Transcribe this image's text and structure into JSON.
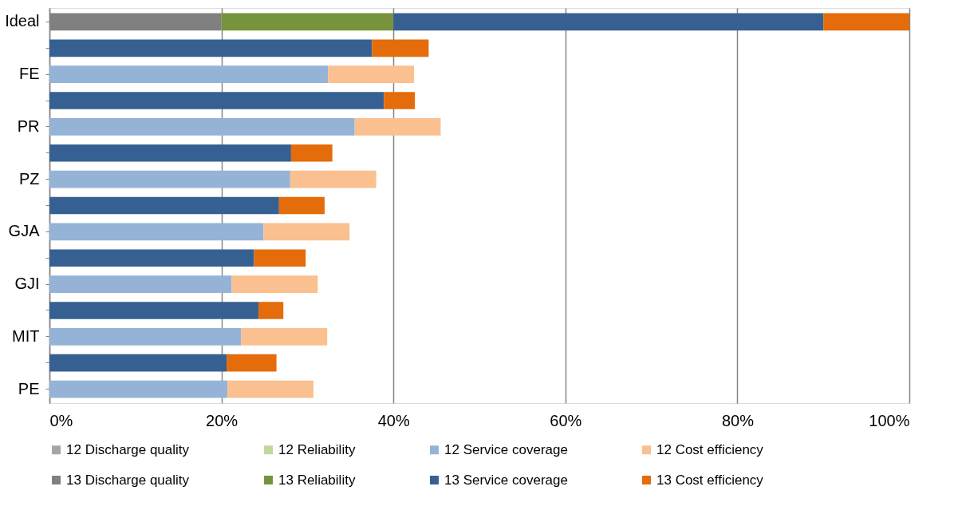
{
  "chart_data": {
    "type": "bar",
    "orientation": "horizontal",
    "stacked": true,
    "categories": [
      "Ideal",
      null,
      "FE",
      null,
      "PR",
      null,
      "PZ",
      null,
      "GJA",
      null,
      "GJI",
      null,
      "MIT",
      null,
      "PE"
    ],
    "series": [
      {
        "name": "12 Discharge quality",
        "color": "#a5a5a5",
        "values": [
          null,
          null,
          null,
          null,
          null,
          null,
          null,
          null,
          null,
          null,
          null,
          null,
          null,
          null,
          null
        ]
      },
      {
        "name": "12 Reliability",
        "color": "#c3d69b",
        "values": [
          null,
          null,
          null,
          null,
          null,
          null,
          null,
          null,
          null,
          null,
          null,
          null,
          null,
          null,
          null
        ]
      },
      {
        "name": "12 Service coverage",
        "color": "#95b3d7",
        "values": [
          null,
          null,
          32.4,
          null,
          35.5,
          null,
          28.0,
          null,
          24.9,
          null,
          21.2,
          null,
          22.3,
          null,
          20.7
        ]
      },
      {
        "name": "12 Cost efficiency",
        "color": "#fac090",
        "values": [
          null,
          null,
          10,
          null,
          10,
          null,
          10,
          null,
          10,
          null,
          10,
          null,
          10,
          null,
          10
        ]
      },
      {
        "name": "13 Discharge quality",
        "color": "#808080",
        "values": [
          20,
          null,
          null,
          null,
          null,
          null,
          null,
          null,
          null,
          null,
          null,
          null,
          null,
          null,
          null
        ]
      },
      {
        "name": "13 Reliability",
        "color": "#77933c",
        "values": [
          20,
          null,
          null,
          null,
          null,
          null,
          null,
          null,
          null,
          null,
          null,
          null,
          null,
          null,
          null
        ]
      },
      {
        "name": "13 Service coverage",
        "color": "#366092",
        "values": [
          50,
          37.5,
          null,
          38.9,
          null,
          28.1,
          null,
          26.7,
          null,
          23.8,
          null,
          24.3,
          null,
          20.6,
          null
        ]
      },
      {
        "name": "13 Cost efficiency",
        "color": "#e46c0a",
        "values": [
          10,
          6.6,
          null,
          3.6,
          null,
          4.8,
          null,
          5.3,
          null,
          6.0,
          null,
          2.9,
          null,
          5.8,
          null
        ]
      }
    ],
    "xlim": [
      0,
      100
    ],
    "xticks": [
      {
        "value": 0,
        "label": "0%"
      },
      {
        "value": 20,
        "label": "20%"
      },
      {
        "value": 40,
        "label": "40%"
      },
      {
        "value": 60,
        "label": "60%"
      },
      {
        "value": 80,
        "label": "80%"
      },
      {
        "value": 100,
        "label": "100%"
      }
    ],
    "grid": "x",
    "legend": "bottom"
  }
}
